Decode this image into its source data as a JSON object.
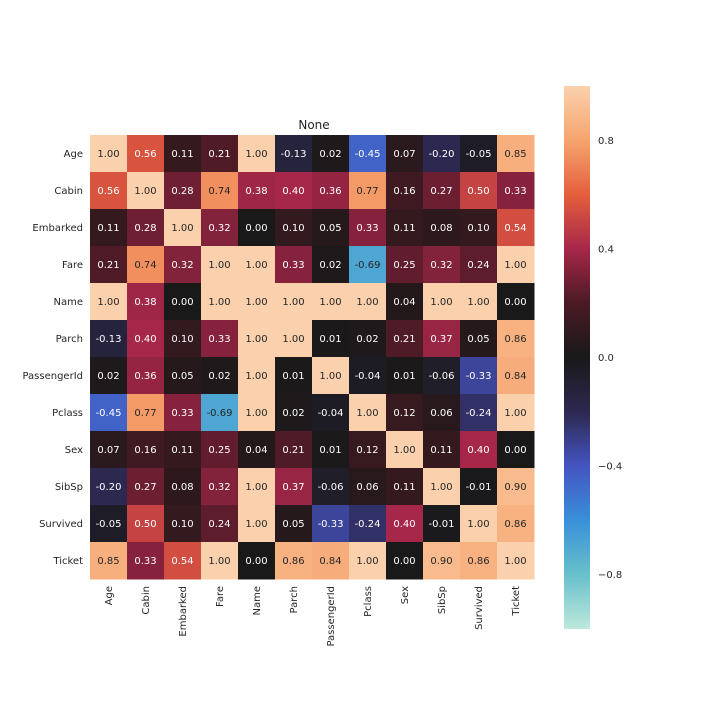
{
  "chart_data": {
    "type": "heatmap",
    "title": "None",
    "rows": [
      "Age",
      "Cabin",
      "Embarked",
      "Fare",
      "Name",
      "Parch",
      "PassengerId",
      "Pclass",
      "Sex",
      "SibSp",
      "Survived",
      "Ticket"
    ],
    "columns": [
      "Age",
      "Cabin",
      "Embarked",
      "Fare",
      "Name",
      "Parch",
      "PassengerId",
      "Pclass",
      "Sex",
      "SibSp",
      "Survived",
      "Ticket"
    ],
    "values": [
      [
        1.0,
        0.56,
        0.11,
        0.21,
        1.0,
        -0.13,
        0.02,
        -0.45,
        0.07,
        -0.2,
        -0.05,
        0.85
      ],
      [
        0.56,
        1.0,
        0.28,
        0.74,
        0.38,
        0.4,
        0.36,
        0.77,
        0.16,
        0.27,
        0.5,
        0.33
      ],
      [
        0.11,
        0.28,
        1.0,
        0.32,
        0.0,
        0.1,
        0.05,
        0.33,
        0.11,
        0.08,
        0.1,
        0.54
      ],
      [
        0.21,
        0.74,
        0.32,
        1.0,
        1.0,
        0.33,
        0.02,
        -0.69,
        0.25,
        0.32,
        0.24,
        1.0
      ],
      [
        1.0,
        0.38,
        0.0,
        1.0,
        1.0,
        1.0,
        1.0,
        1.0,
        0.04,
        1.0,
        1.0,
        0.0
      ],
      [
        -0.13,
        0.4,
        0.1,
        0.33,
        1.0,
        1.0,
        0.01,
        0.02,
        0.21,
        0.37,
        0.05,
        0.86
      ],
      [
        0.02,
        0.36,
        0.05,
        0.02,
        1.0,
        0.01,
        1.0,
        -0.04,
        0.01,
        -0.06,
        -0.33,
        0.84
      ],
      [
        -0.45,
        0.77,
        0.33,
        -0.69,
        1.0,
        0.02,
        -0.04,
        1.0,
        0.12,
        0.06,
        -0.24,
        1.0
      ],
      [
        0.07,
        0.16,
        0.11,
        0.25,
        0.04,
        0.21,
        0.01,
        0.12,
        1.0,
        0.11,
        0.4,
        0.0
      ],
      [
        -0.2,
        0.27,
        0.08,
        0.32,
        1.0,
        0.37,
        -0.06,
        0.06,
        0.11,
        1.0,
        -0.01,
        0.9
      ],
      [
        -0.05,
        0.5,
        0.1,
        0.24,
        1.0,
        0.05,
        -0.33,
        -0.24,
        0.4,
        -0.01,
        1.0,
        0.86
      ],
      [
        0.85,
        0.33,
        0.54,
        1.0,
        0.0,
        0.86,
        0.84,
        1.0,
        0.0,
        0.9,
        0.86,
        1.0
      ]
    ],
    "value_format": "0.00",
    "vmin": -1.0,
    "vmax": 1.0,
    "center": 0.0,
    "colormap": "icefire",
    "colorbar": {
      "ticks": [
        0.8,
        0.4,
        0.0,
        -0.4,
        -0.8
      ],
      "tick_labels": [
        "0.8",
        "0.4",
        "0.0",
        "−0.4",
        "−0.8"
      ],
      "placement": "right"
    },
    "grid": false
  }
}
